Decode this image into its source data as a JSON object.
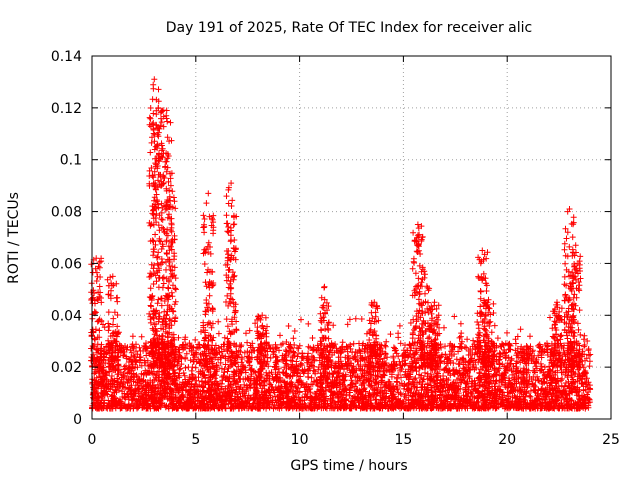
{
  "chart_data": {
    "type": "scatter",
    "title": "Day 191 of 2025, Rate Of TEC Index for receiver alic",
    "xlabel": "GPS time / hours",
    "ylabel": "ROTI / TECUs",
    "xlim": [
      0,
      25
    ],
    "ylim": [
      0,
      0.14
    ],
    "x_ticks": [
      0,
      5,
      10,
      15,
      20,
      25
    ],
    "x_tick_labels": [
      "0",
      "5",
      "10",
      "15",
      "20",
      "25"
    ],
    "y_ticks": [
      0,
      0.02,
      0.04,
      0.06,
      0.08,
      0.1,
      0.12,
      0.14
    ],
    "y_tick_labels": [
      "0",
      "0.02",
      "0.04",
      "0.06",
      "0.08",
      "0.1",
      "0.12",
      "0.14"
    ],
    "grid": true,
    "marker": "+",
    "marker_color": "#ff0000",
    "x_range_hours": [
      0,
      24
    ],
    "baseline_band": [
      0.004,
      0.025
    ],
    "spikes": [
      {
        "x": 0.2,
        "peak": 0.062
      },
      {
        "x": 1.0,
        "peak": 0.055
      },
      {
        "x": 3.0,
        "peak": 0.131
      },
      {
        "x": 3.2,
        "peak": 0.12
      },
      {
        "x": 3.6,
        "peak": 0.119
      },
      {
        "x": 3.8,
        "peak": 0.09
      },
      {
        "x": 5.6,
        "peak": 0.087
      },
      {
        "x": 6.7,
        "peak": 0.091
      },
      {
        "x": 8.2,
        "peak": 0.04
      },
      {
        "x": 11.2,
        "peak": 0.051
      },
      {
        "x": 13.6,
        "peak": 0.045
      },
      {
        "x": 15.7,
        "peak": 0.075
      },
      {
        "x": 16.0,
        "peak": 0.057
      },
      {
        "x": 16.5,
        "peak": 0.045
      },
      {
        "x": 18.8,
        "peak": 0.065
      },
      {
        "x": 19.1,
        "peak": 0.046
      },
      {
        "x": 22.4,
        "peak": 0.045
      },
      {
        "x": 23.0,
        "peak": 0.081
      },
      {
        "x": 23.3,
        "peak": 0.067
      }
    ]
  }
}
